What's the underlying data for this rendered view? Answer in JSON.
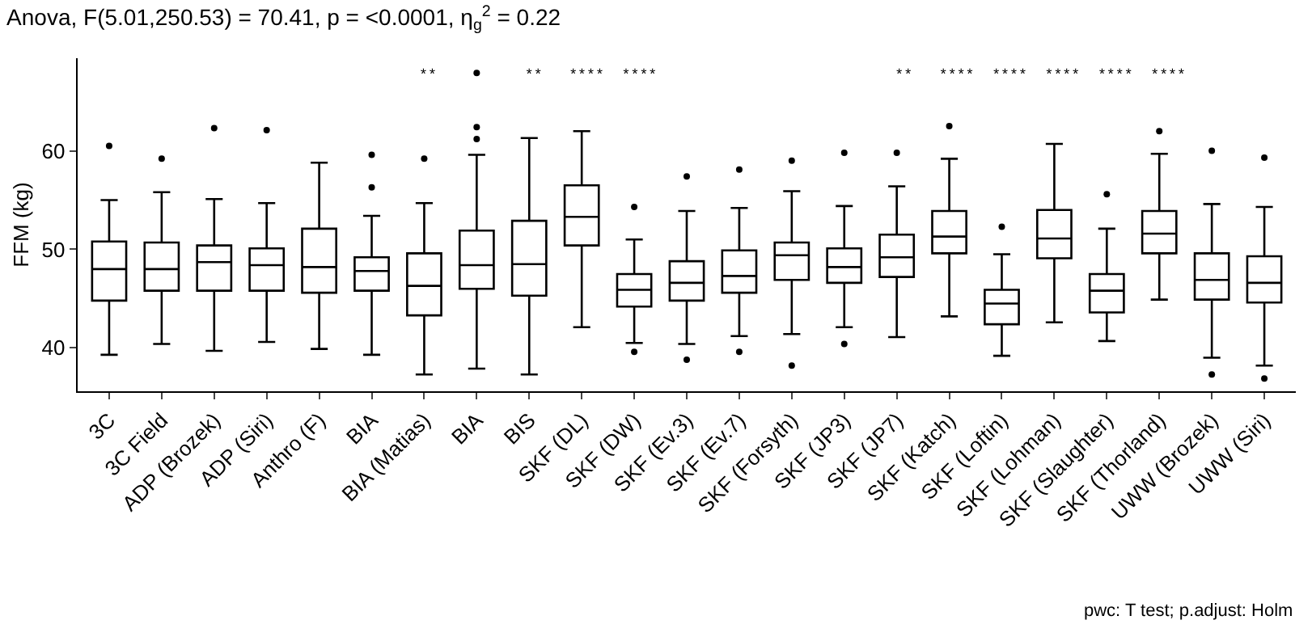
{
  "chart_data": {
    "type": "box",
    "title": "Anova, F(5.01,250.53) = 70.41, p = <0.0001, η$_{g}$$^{2}$ = 0.22",
    "ylabel": "FFM (kg)",
    "categories": [
      "3C",
      "3C Field",
      "ADP (Brozek)",
      "ADP (Siri)",
      "Anthro (F)",
      "BIA",
      "BIA (Matias)",
      "BIA",
      "BIS",
      "SKF (DL)",
      "SKF (DW)",
      "SKF (Ev.3)",
      "SKF (Ev.7)",
      "SKF (Forsyth)",
      "SKF (JP3)",
      "SKF (JP7)",
      "SKF (Katch)",
      "SKF (Loftin)",
      "SKF (Lohman)",
      "SKF (Slaughter)",
      "SKF (Thorland)",
      "UWW (Brozek)",
      "UWW (Siri)"
    ],
    "boxes": [
      {
        "low": 39.3,
        "q1": 44.8,
        "median": 48.0,
        "q3": 50.8,
        "high": 55.0,
        "outliers": [
          60.5
        ]
      },
      {
        "low": 40.4,
        "q1": 45.8,
        "median": 48.0,
        "q3": 50.7,
        "high": 55.8,
        "outliers": [
          59.2
        ]
      },
      {
        "low": 39.7,
        "q1": 45.8,
        "median": 48.7,
        "q3": 50.4,
        "high": 55.1,
        "outliers": [
          62.3
        ]
      },
      {
        "low": 40.6,
        "q1": 45.8,
        "median": 48.4,
        "q3": 50.1,
        "high": 54.7,
        "outliers": [
          62.1
        ]
      },
      {
        "low": 39.9,
        "q1": 45.6,
        "median": 48.2,
        "q3": 52.1,
        "high": 58.8
      },
      {
        "low": 39.3,
        "q1": 45.8,
        "median": 47.8,
        "q3": 49.2,
        "high": 53.4,
        "outliers": [
          59.6,
          56.3
        ]
      },
      {
        "low": 37.3,
        "q1": 43.3,
        "median": 46.3,
        "q3": 49.6,
        "high": 54.7,
        "outliers": [
          59.2
        ]
      },
      {
        "low": 37.9,
        "q1": 46.0,
        "median": 48.4,
        "q3": 51.9,
        "high": 59.6,
        "outliers": [
          67.9,
          62.4,
          61.2
        ]
      },
      {
        "low": 37.3,
        "q1": 45.3,
        "median": 48.5,
        "q3": 52.9,
        "high": 61.3
      },
      {
        "low": 42.1,
        "q1": 50.4,
        "median": 53.3,
        "q3": 56.5,
        "high": 62.0
      },
      {
        "low": 40.5,
        "q1": 44.2,
        "median": 45.9,
        "q3": 47.5,
        "high": 51.0,
        "outliers": [
          54.3,
          39.6
        ]
      },
      {
        "low": 40.4,
        "q1": 44.8,
        "median": 46.6,
        "q3": 48.8,
        "high": 53.9,
        "outliers": [
          57.4,
          38.8
        ]
      },
      {
        "low": 41.2,
        "q1": 45.6,
        "median": 47.3,
        "q3": 49.9,
        "high": 54.2,
        "outliers": [
          58.1,
          39.6
        ]
      },
      {
        "low": 41.4,
        "q1": 46.9,
        "median": 49.4,
        "q3": 50.7,
        "high": 55.9,
        "outliers": [
          59.0,
          38.2
        ]
      },
      {
        "low": 42.1,
        "q1": 46.6,
        "median": 48.2,
        "q3": 50.1,
        "high": 54.4,
        "outliers": [
          59.8,
          40.4
        ]
      },
      {
        "low": 41.1,
        "q1": 47.2,
        "median": 49.2,
        "q3": 51.5,
        "high": 56.4,
        "outliers": [
          59.8
        ]
      },
      {
        "low": 43.2,
        "q1": 49.6,
        "median": 51.3,
        "q3": 53.9,
        "high": 59.2,
        "outliers": [
          62.5
        ]
      },
      {
        "low": 39.2,
        "q1": 42.4,
        "median": 44.5,
        "q3": 45.9,
        "high": 49.5,
        "outliers": [
          52.3
        ]
      },
      {
        "low": 42.6,
        "q1": 49.1,
        "median": 51.1,
        "q3": 54.0,
        "high": 60.7
      },
      {
        "low": 40.7,
        "q1": 43.6,
        "median": 45.8,
        "q3": 47.5,
        "high": 52.1,
        "outliers": [
          55.6
        ]
      },
      {
        "low": 44.9,
        "q1": 49.6,
        "median": 51.6,
        "q3": 53.9,
        "high": 59.7,
        "outliers": [
          62.0
        ]
      },
      {
        "low": 39.0,
        "q1": 44.9,
        "median": 46.9,
        "q3": 49.6,
        "high": 54.6,
        "outliers": [
          60.0,
          37.3
        ]
      },
      {
        "low": 38.2,
        "q1": 44.6,
        "median": 46.6,
        "q3": 49.3,
        "high": 54.3,
        "outliers": [
          59.3,
          36.9
        ]
      }
    ],
    "ylim": [
      35.6,
      69.4
    ],
    "yticks": [
      40,
      50,
      60
    ],
    "color": "#000000",
    "annotations": [
      "**          **   ****  ****                           **   ****  ****  ****  ****  ****",
      "pwc: T test; p.adjust: Holm"
    ]
  }
}
